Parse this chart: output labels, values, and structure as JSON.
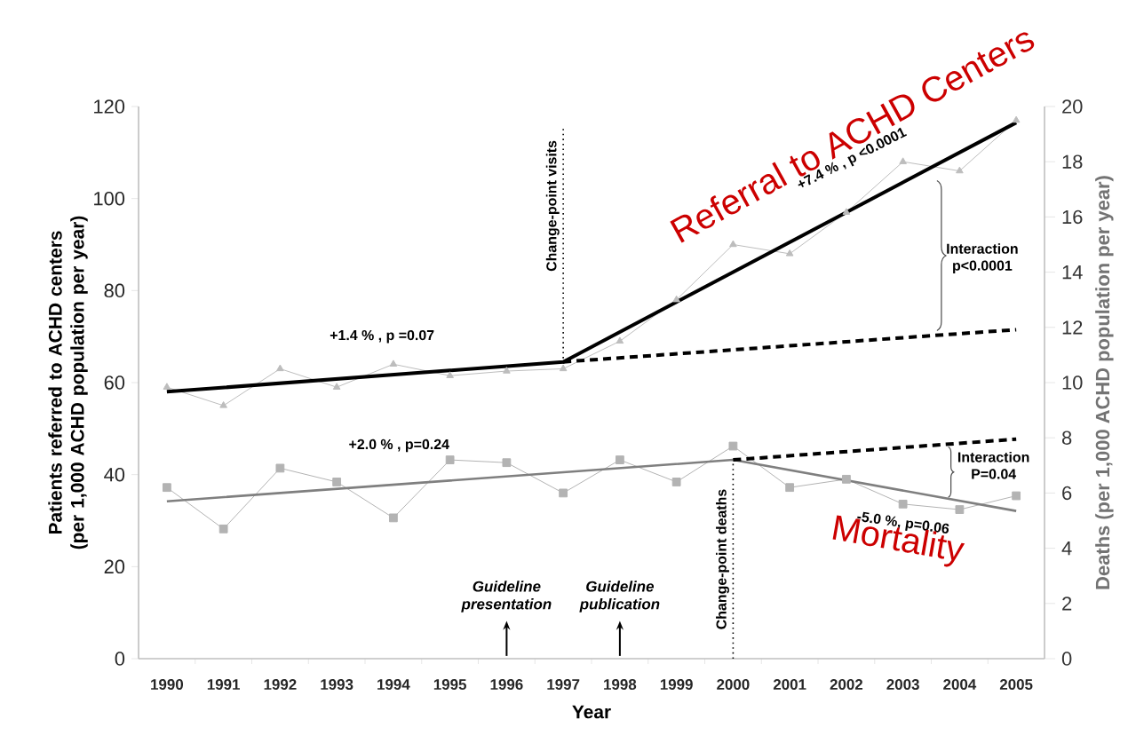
{
  "chart_data": {
    "type": "line",
    "xlabel": "Year",
    "ylabel": "Patients referred to ACHD centers (per 1,000 ACHD population per year)",
    "y2label": "Deaths (per 1,000 ACHD population per year)",
    "x": [
      1990,
      1991,
      1992,
      1993,
      1994,
      1995,
      1996,
      1997,
      1998,
      1999,
      2000,
      2001,
      2002,
      2003,
      2004,
      2005
    ],
    "series": [
      {
        "color": "#bdbdbd",
        "marker": "triangle",
        "values": [
          59,
          55,
          63,
          59,
          64,
          61.5,
          62.5,
          63,
          69,
          78,
          90,
          88,
          97,
          108,
          106,
          117
        ]
      },
      {
        "axis": "y2",
        "color": "#b3b3b3",
        "marker": "square",
        "values": [
          6.2,
          4.7,
          6.9,
          6.4,
          5.1,
          7.2,
          7.1,
          6.0,
          7.2,
          6.4,
          7.7,
          6.2,
          6.5,
          5.6,
          5.4,
          5.9
        ]
      },
      {
        "color": "#000000",
        "marker": "none",
        "x": [
          1990,
          1997,
          2005
        ],
        "values": [
          58,
          64.5,
          116.5
        ]
      },
      {
        "color": "#000000",
        "marker": "none",
        "line_style": "dashed",
        "x": [
          1997,
          2005
        ],
        "values": [
          64.5,
          71.5
        ]
      },
      {
        "axis": "y2",
        "color": "#7f7f7f",
        "marker": "none",
        "x": [
          1990,
          2000,
          2005
        ],
        "values": [
          5.7,
          7.2,
          5.35
        ]
      },
      {
        "axis": "y2",
        "color": "#000000",
        "marker": "none",
        "line_style": "dashed",
        "x": [
          2000,
          2005
        ],
        "values": [
          7.2,
          7.95
        ]
      }
    ],
    "xlim": [
      1989.5,
      2005.5
    ],
    "ylim": [
      0,
      120
    ],
    "y2lim": [
      0,
      20
    ],
    "xticks": [
      1990,
      1991,
      1992,
      1993,
      1994,
      1995,
      1996,
      1997,
      1998,
      1999,
      2000,
      2001,
      2002,
      2003,
      2004,
      2005
    ],
    "yticks": [
      0,
      20,
      40,
      60,
      80,
      100,
      120
    ],
    "y2ticks": [
      0,
      2,
      4,
      6,
      8,
      10,
      12,
      14,
      16,
      18,
      20
    ],
    "ref_lines": [
      {
        "axis": "x",
        "value": 1997,
        "label": "Change-point visits",
        "color": "#000000",
        "line_style": "dotted"
      },
      {
        "axis": "x",
        "value": 2000,
        "label": "Change-point deaths",
        "color": "#000000",
        "line_style": "dotted"
      }
    ],
    "annotations": [
      "+1.4 % , p =0.07",
      "+7.4 % , p <0.0001",
      "+2.0 % , p=0.24",
      "-5.0 %, p=0.06",
      "Guideline presentation",
      "Guideline publication",
      "Interaction p<0.0001",
      "Interaction P=0.04",
      {
        "text": "Referral to ACHD Centers",
        "x": 2003.6,
        "y": 107.4
      },
      "Mortality"
    ]
  }
}
